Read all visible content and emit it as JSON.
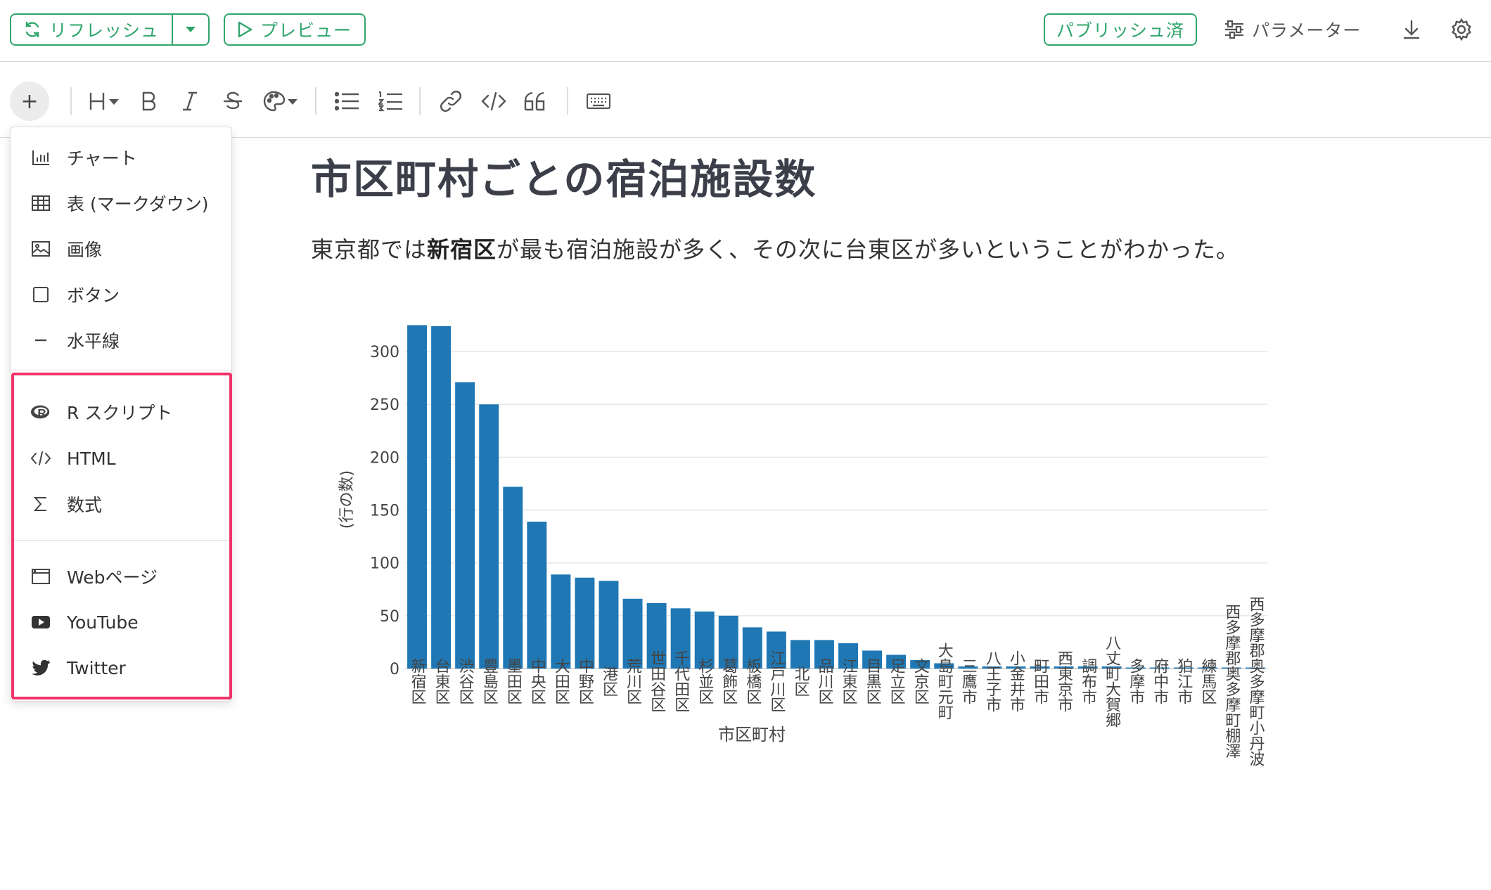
{
  "topbar": {
    "refresh_label": "リフレッシュ",
    "preview_label": "プレビュー",
    "published_label": "パブリッシュ済",
    "parameter_label": "パラメーター"
  },
  "menu": {
    "items_basic": [
      {
        "label": "チャート",
        "icon": "bar-chart-icon"
      },
      {
        "label": "表 (マークダウン)",
        "icon": "table-icon"
      },
      {
        "label": "画像",
        "icon": "image-icon"
      },
      {
        "label": "ボタン",
        "icon": "button-icon"
      },
      {
        "label": "水平線",
        "icon": "horizontal-line-icon"
      }
    ],
    "items_code": [
      {
        "label": "R スクリプト",
        "icon": "r-logo-icon"
      },
      {
        "label": "HTML",
        "icon": "code-icon"
      },
      {
        "label": "数式",
        "icon": "sigma-icon"
      }
    ],
    "items_embed": [
      {
        "label": "Webページ",
        "icon": "browser-window-icon"
      },
      {
        "label": "YouTube",
        "icon": "youtube-icon"
      },
      {
        "label": "Twitter",
        "icon": "twitter-icon"
      }
    ],
    "highlight_color": "#f0336a"
  },
  "document": {
    "title": "市区町村ごとの宿泊施設数",
    "paragraph_pre": "東京都では",
    "paragraph_bold": "新宿区",
    "paragraph_post": "が最も宿泊施設が多く、その次に台東区が多いということがわかった。"
  },
  "colors": {
    "accent": "#2fa56b",
    "bar": "#1f77b4"
  },
  "chart_data": {
    "type": "bar",
    "title": "",
    "xlabel": "市区町村",
    "ylabel": "(行の数)",
    "ylim": [
      0,
      320
    ],
    "yticks": [
      0,
      50,
      100,
      150,
      200,
      250,
      300
    ],
    "grid": true,
    "categories": [
      "新宿区",
      "台東区",
      "渋谷区",
      "豊島区",
      "墨田区",
      "中央区",
      "大田区",
      "中野区",
      "港区",
      "荒川区",
      "世田谷区",
      "千代田区",
      "杉並区",
      "葛飾区",
      "板橋区",
      "江戸川区",
      "北区",
      "品川区",
      "江東区",
      "目黒区",
      "足立区",
      "文京区",
      "大島町元町",
      "三鷹市",
      "八王子市",
      "小金井市",
      "町田市",
      "西東京市",
      "調布市",
      "八丈町大賀郷",
      "多摩市",
      "府中市",
      "狛江市",
      "練馬区",
      "西多摩郡奥多摩町棚澤",
      "西多摩郡奥多摩町小丹波"
    ],
    "values": [
      325,
      324,
      271,
      250,
      172,
      139,
      89,
      86,
      83,
      66,
      62,
      57,
      54,
      50,
      39,
      35,
      27,
      27,
      24,
      17,
      13,
      8,
      5,
      2,
      2,
      2,
      2,
      2,
      2,
      2,
      1,
      1,
      1,
      1,
      1,
      1
    ]
  }
}
